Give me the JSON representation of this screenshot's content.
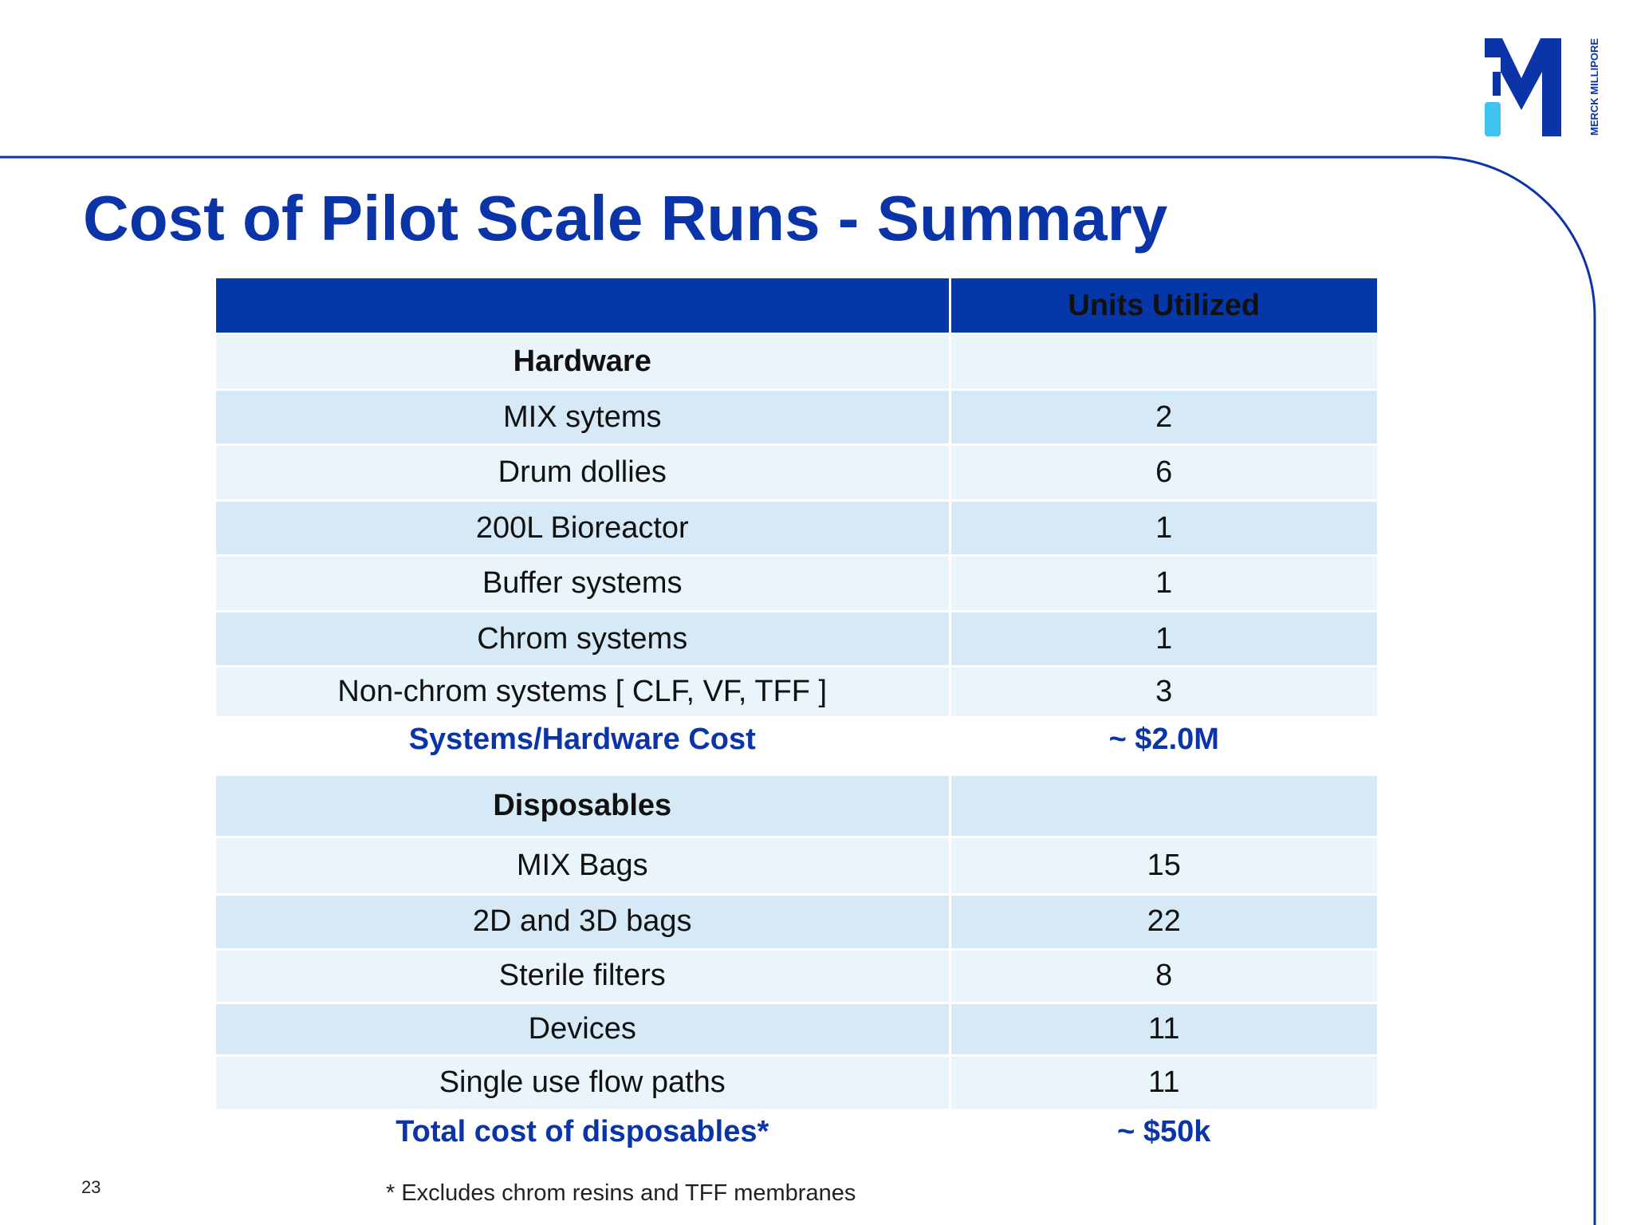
{
  "slide": {
    "title": "Cost of Pilot Scale Runs - Summary",
    "page_number": "23",
    "footnote": "* Excludes chrom resins and TFF membranes"
  },
  "logo": {
    "text": "MERCK MILLIPORE",
    "colors": {
      "blue": "#0a34a8",
      "cyan": "#3ec2f0"
    }
  },
  "table": {
    "header": [
      "",
      "Units  Utilized"
    ],
    "hardware_section": "Hardware",
    "hardware_rows": [
      {
        "item": "MIX sytems",
        "units": "2"
      },
      {
        "item": "Drum dollies",
        "units": "6"
      },
      {
        "item": "200L Bioreactor",
        "units": "1"
      },
      {
        "item": "Buffer systems",
        "units": "1"
      },
      {
        "item": "Chrom systems",
        "units": "1"
      },
      {
        "item": "Non-chrom systems [ CLF, VF, TFF ]",
        "units": "3"
      }
    ],
    "hardware_total": {
      "label": "Systems/Hardware Cost",
      "value": "~ $2.0M"
    },
    "disposables_section": "Disposables",
    "disposables_rows": [
      {
        "item": "MIX Bags",
        "units": "15"
      },
      {
        "item": "2D and 3D bags",
        "units": "22"
      },
      {
        "item": "Sterile filters",
        "units": "8"
      },
      {
        "item": "Devices",
        "units": "11"
      },
      {
        "item": "Single use flow paths",
        "units": "11"
      }
    ],
    "disposables_total": {
      "label": "Total cost of disposables*",
      "value": "~ $50k"
    }
  },
  "colors": {
    "header_bg": "#0637a8",
    "row_light": "#e9f5fb",
    "row_dark": "#d5e9f6",
    "accent_text": "#0a34a8"
  }
}
